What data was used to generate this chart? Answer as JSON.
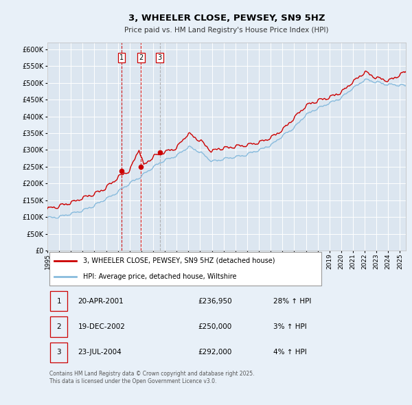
{
  "title": "3, WHEELER CLOSE, PEWSEY, SN9 5HZ",
  "subtitle": "Price paid vs. HM Land Registry's House Price Index (HPI)",
  "background_color": "#e8f0f8",
  "plot_bg_color": "#dce6f0",
  "grid_color": "#ffffff",
  "red_line_color": "#cc0000",
  "blue_line_color": "#88bbdd",
  "transactions": [
    {
      "num": 1,
      "date_str": "20-APR-2001",
      "year": 2001.3,
      "price": 236950,
      "pct": "28% ↑ HPI"
    },
    {
      "num": 2,
      "date_str": "19-DEC-2002",
      "year": 2002.97,
      "price": 250000,
      "pct": "3% ↑ HPI"
    },
    {
      "num": 3,
      "date_str": "23-JUL-2004",
      "year": 2004.56,
      "price": 292000,
      "pct": "4% ↑ HPI"
    }
  ],
  "legend_label_red": "3, WHEELER CLOSE, PEWSEY, SN9 5HZ (detached house)",
  "legend_label_blue": "HPI: Average price, detached house, Wiltshire",
  "footer": "Contains HM Land Registry data © Crown copyright and database right 2025.\nThis data is licensed under the Open Government Licence v3.0.",
  "xlim": [
    1995.0,
    2025.5
  ],
  "ylim": [
    0,
    620000
  ],
  "yticks": [
    0,
    50000,
    100000,
    150000,
    200000,
    250000,
    300000,
    350000,
    400000,
    450000,
    500000,
    550000,
    600000
  ],
  "xtick_years": [
    1995,
    1996,
    1997,
    1998,
    1999,
    2000,
    2001,
    2002,
    2003,
    2004,
    2005,
    2006,
    2007,
    2008,
    2009,
    2010,
    2011,
    2012,
    2013,
    2014,
    2015,
    2016,
    2017,
    2018,
    2019,
    2020,
    2021,
    2022,
    2023,
    2024,
    2025
  ]
}
